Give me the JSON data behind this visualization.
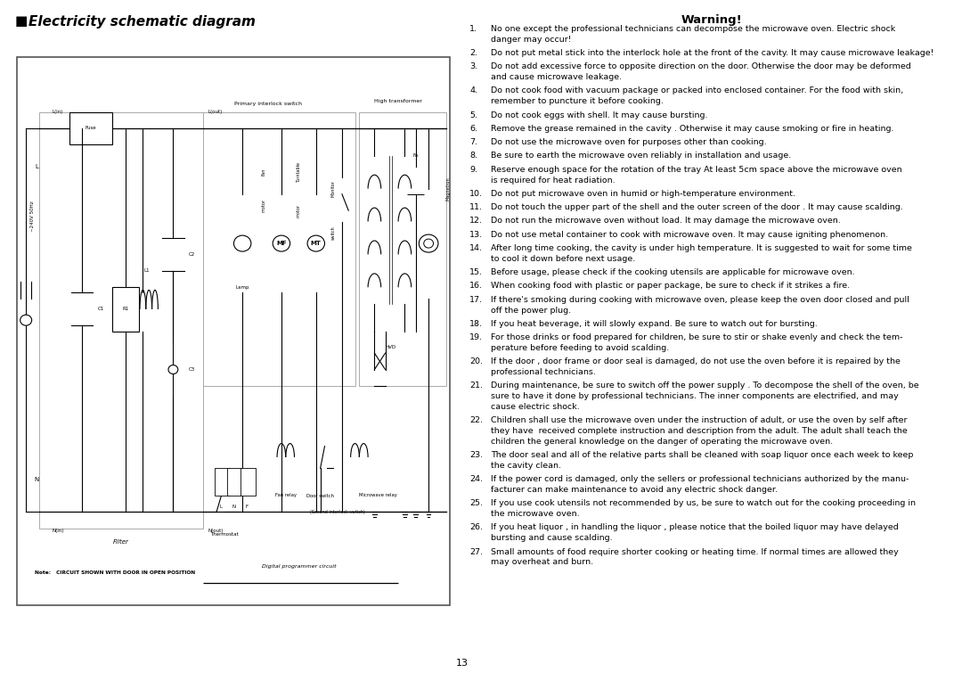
{
  "page_title_left": "Electricity schematic diagram",
  "warning_title": "Warning!",
  "warning_items": [
    [
      "1.",
      "No one except the professional technicians can decompose the microwave oven. Electric shock",
      "danger may occur!"
    ],
    [
      "2.",
      "Do not put metal stick into the interlock hole at the front of the cavity. It may cause microwave leakage!"
    ],
    [
      "3.",
      "Do not add excessive force to opposite direction on the door. Otherwise the door may be deformed",
      "and cause microwave leakage."
    ],
    [
      "4.",
      "Do not cook food with vacuum package or packed into enclosed container. For the food with skin,",
      "remember to puncture it before cooking."
    ],
    [
      "5.",
      "Do not cook eggs with shell. It may cause bursting."
    ],
    [
      "6.",
      "Remove the grease remained in the cavity . Otherwise it may cause smoking or fire in heating."
    ],
    [
      "7.",
      "Do not use the microwave oven for purposes other than cooking."
    ],
    [
      "8.",
      "Be sure to earth the microwave oven reliably in installation and usage."
    ],
    [
      "9.",
      "Reserve enough space for the rotation of the tray At least 5cm space above the microwave oven",
      "is required for heat radiation."
    ],
    [
      "10.",
      "Do not put microwave oven in humid or high-temperature environment."
    ],
    [
      "11.",
      "Do not touch the upper part of the shell and the outer screen of the door . It may cause scalding."
    ],
    [
      "12.",
      "Do not run the microwave oven without load. It may damage the microwave oven."
    ],
    [
      "13.",
      "Do not use metal container to cook with microwave oven. It may cause igniting phenomenon."
    ],
    [
      "14.",
      "After long time cooking, the cavity is under high temperature. It is suggested to wait for some time",
      "to cool it down before next usage."
    ],
    [
      "15.",
      "Before usage, please check if the cooking utensils are applicable for microwave oven."
    ],
    [
      "16.",
      "When cooking food with plastic or paper package, be sure to check if it strikes a fire."
    ],
    [
      "17.",
      "If there's smoking during cooking with microwave oven, please keep the oven door closed and pull",
      "off the power plug."
    ],
    [
      "18.",
      "If you heat beverage, it will slowly expand. Be sure to watch out for bursting."
    ],
    [
      "19.",
      "For those drinks or food prepared for children, be sure to stir or shake evenly and check the tem-",
      "perature before feeding to avoid scalding."
    ],
    [
      "20.",
      "If the door , door frame or door seal is damaged, do not use the oven before it is repaired by the",
      "professional technicians."
    ],
    [
      "21.",
      "During maintenance, be sure to switch off the power supply . To decompose the shell of the oven, be",
      "sure to have it done by professional technicians. The inner components are electrified, and may",
      "cause electric shock."
    ],
    [
      "22.",
      "Children shall use the microwave oven under the instruction of adult, or use the oven by self after",
      "they have  received complete instruction and description from the adult. The adult shall teach the",
      "children the general knowledge on the danger of operating the microwave oven."
    ],
    [
      "23.",
      "The door seal and all of the relative parts shall be cleaned with soap liquor once each week to keep",
      "the cavity clean."
    ],
    [
      "24.",
      "If the power cord is damaged, only the sellers or professional technicians authorized by the manu-",
      "facturer can make maintenance to avoid any electric shock danger."
    ],
    [
      "25.",
      "If you use cook utensils not recommended by us, be sure to watch out for the cooking proceeding in",
      "the microwave oven."
    ],
    [
      "26.",
      "If you heat liquor , in handling the liquor , please notice that the boiled liquor may have delayed",
      "bursting and cause scalding."
    ],
    [
      "27.",
      "Small amounts of food require shorter cooking or heating time. If normal times are allowed they",
      "may overheat and burn."
    ]
  ],
  "page_number": "13",
  "bg_color": "#ffffff",
  "text_color": "#000000"
}
